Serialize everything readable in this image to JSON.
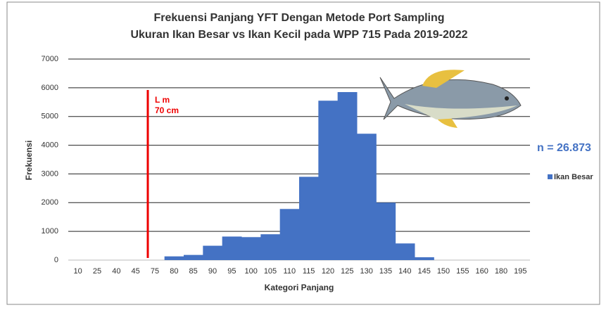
{
  "chart_data": {
    "type": "bar",
    "title": "Frekuensi Panjang YFT Dengan Metode Port Sampling",
    "subtitle": "Ukuran Ikan Besar vs Ikan Kecil pada WPP 715 Pada 2019-2022",
    "x_label": "Kategori Panjang",
    "y_label": "Frekuensi",
    "categories": [
      "10",
      "25",
      "40",
      "45",
      "75",
      "80",
      "85",
      "90",
      "95",
      "100",
      "105",
      "110",
      "115",
      "120",
      "125",
      "130",
      "135",
      "140",
      "145",
      "150",
      "155",
      "160",
      "180",
      "195"
    ],
    "series": [
      {
        "name": "Ikan Besar",
        "color": "#4472c4",
        "values": [
          0,
          0,
          0,
          0,
          0,
          130,
          180,
          500,
          820,
          800,
          900,
          1780,
          2900,
          5550,
          5850,
          4400,
          2000,
          580,
          100,
          0,
          0,
          0,
          0,
          0
        ]
      }
    ],
    "ylim": [
      0,
      7000
    ],
    "yticks": [
      0,
      1000,
      2000,
      3000,
      4000,
      5000,
      6000,
      7000
    ],
    "grid": true,
    "annotations": {
      "lm": "L m",
      "lm_value": "70 cm",
      "n": "n = 26.873"
    },
    "legend": "right"
  }
}
